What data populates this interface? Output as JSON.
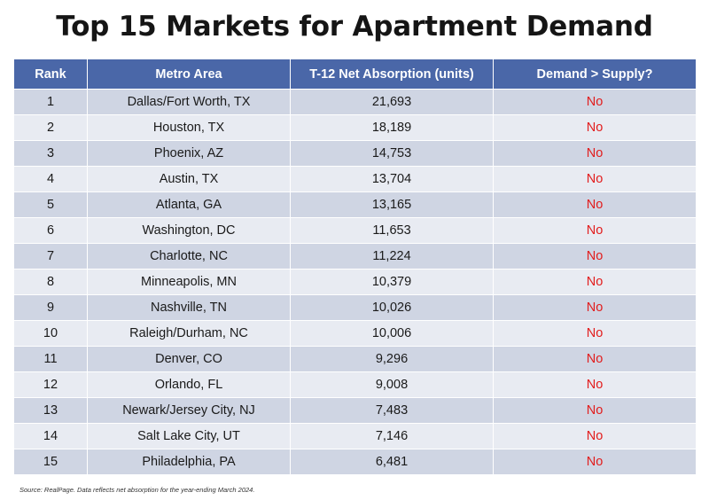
{
  "title": "Top 15 Markets for Apartment Demand",
  "table": {
    "headers": [
      "Rank",
      "Metro Area",
      "T-12 Net Absorption (units)",
      "Demand > Supply?"
    ],
    "rows": [
      {
        "rank": "1",
        "metro": "Dallas/Fort Worth, TX",
        "absorption": "21,693",
        "demand_gt_supply": "No"
      },
      {
        "rank": "2",
        "metro": "Houston, TX",
        "absorption": "18,189",
        "demand_gt_supply": "No"
      },
      {
        "rank": "3",
        "metro": "Phoenix, AZ",
        "absorption": "14,753",
        "demand_gt_supply": "No"
      },
      {
        "rank": "4",
        "metro": "Austin, TX",
        "absorption": "13,704",
        "demand_gt_supply": "No"
      },
      {
        "rank": "5",
        "metro": "Atlanta, GA",
        "absorption": "13,165",
        "demand_gt_supply": "No"
      },
      {
        "rank": "6",
        "metro": "Washington, DC",
        "absorption": "11,653",
        "demand_gt_supply": "No"
      },
      {
        "rank": "7",
        "metro": "Charlotte, NC",
        "absorption": "11,224",
        "demand_gt_supply": "No"
      },
      {
        "rank": "8",
        "metro": "Minneapolis, MN",
        "absorption": "10,379",
        "demand_gt_supply": "No"
      },
      {
        "rank": "9",
        "metro": "Nashville, TN",
        "absorption": "10,026",
        "demand_gt_supply": "No"
      },
      {
        "rank": "10",
        "metro": "Raleigh/Durham, NC",
        "absorption": "10,006",
        "demand_gt_supply": "No"
      },
      {
        "rank": "11",
        "metro": "Denver, CO",
        "absorption": "9,296",
        "demand_gt_supply": "No"
      },
      {
        "rank": "12",
        "metro": "Orlando, FL",
        "absorption": "9,008",
        "demand_gt_supply": "No"
      },
      {
        "rank": "13",
        "metro": "Newark/Jersey City, NJ",
        "absorption": "7,483",
        "demand_gt_supply": "No"
      },
      {
        "rank": "14",
        "metro": "Salt Lake City, UT",
        "absorption": "7,146",
        "demand_gt_supply": "No"
      },
      {
        "rank": "15",
        "metro": "Philadelphia, PA",
        "absorption": "6,481",
        "demand_gt_supply": "No"
      }
    ]
  },
  "source": "Source: RealPage. Data reflects net absorption for the year-ending March 2024.",
  "colors": {
    "header_bg": "#4a67a8",
    "row_dark": "#cfd5e3",
    "row_light": "#e8ebf2",
    "no_text": "#e21b1b"
  }
}
